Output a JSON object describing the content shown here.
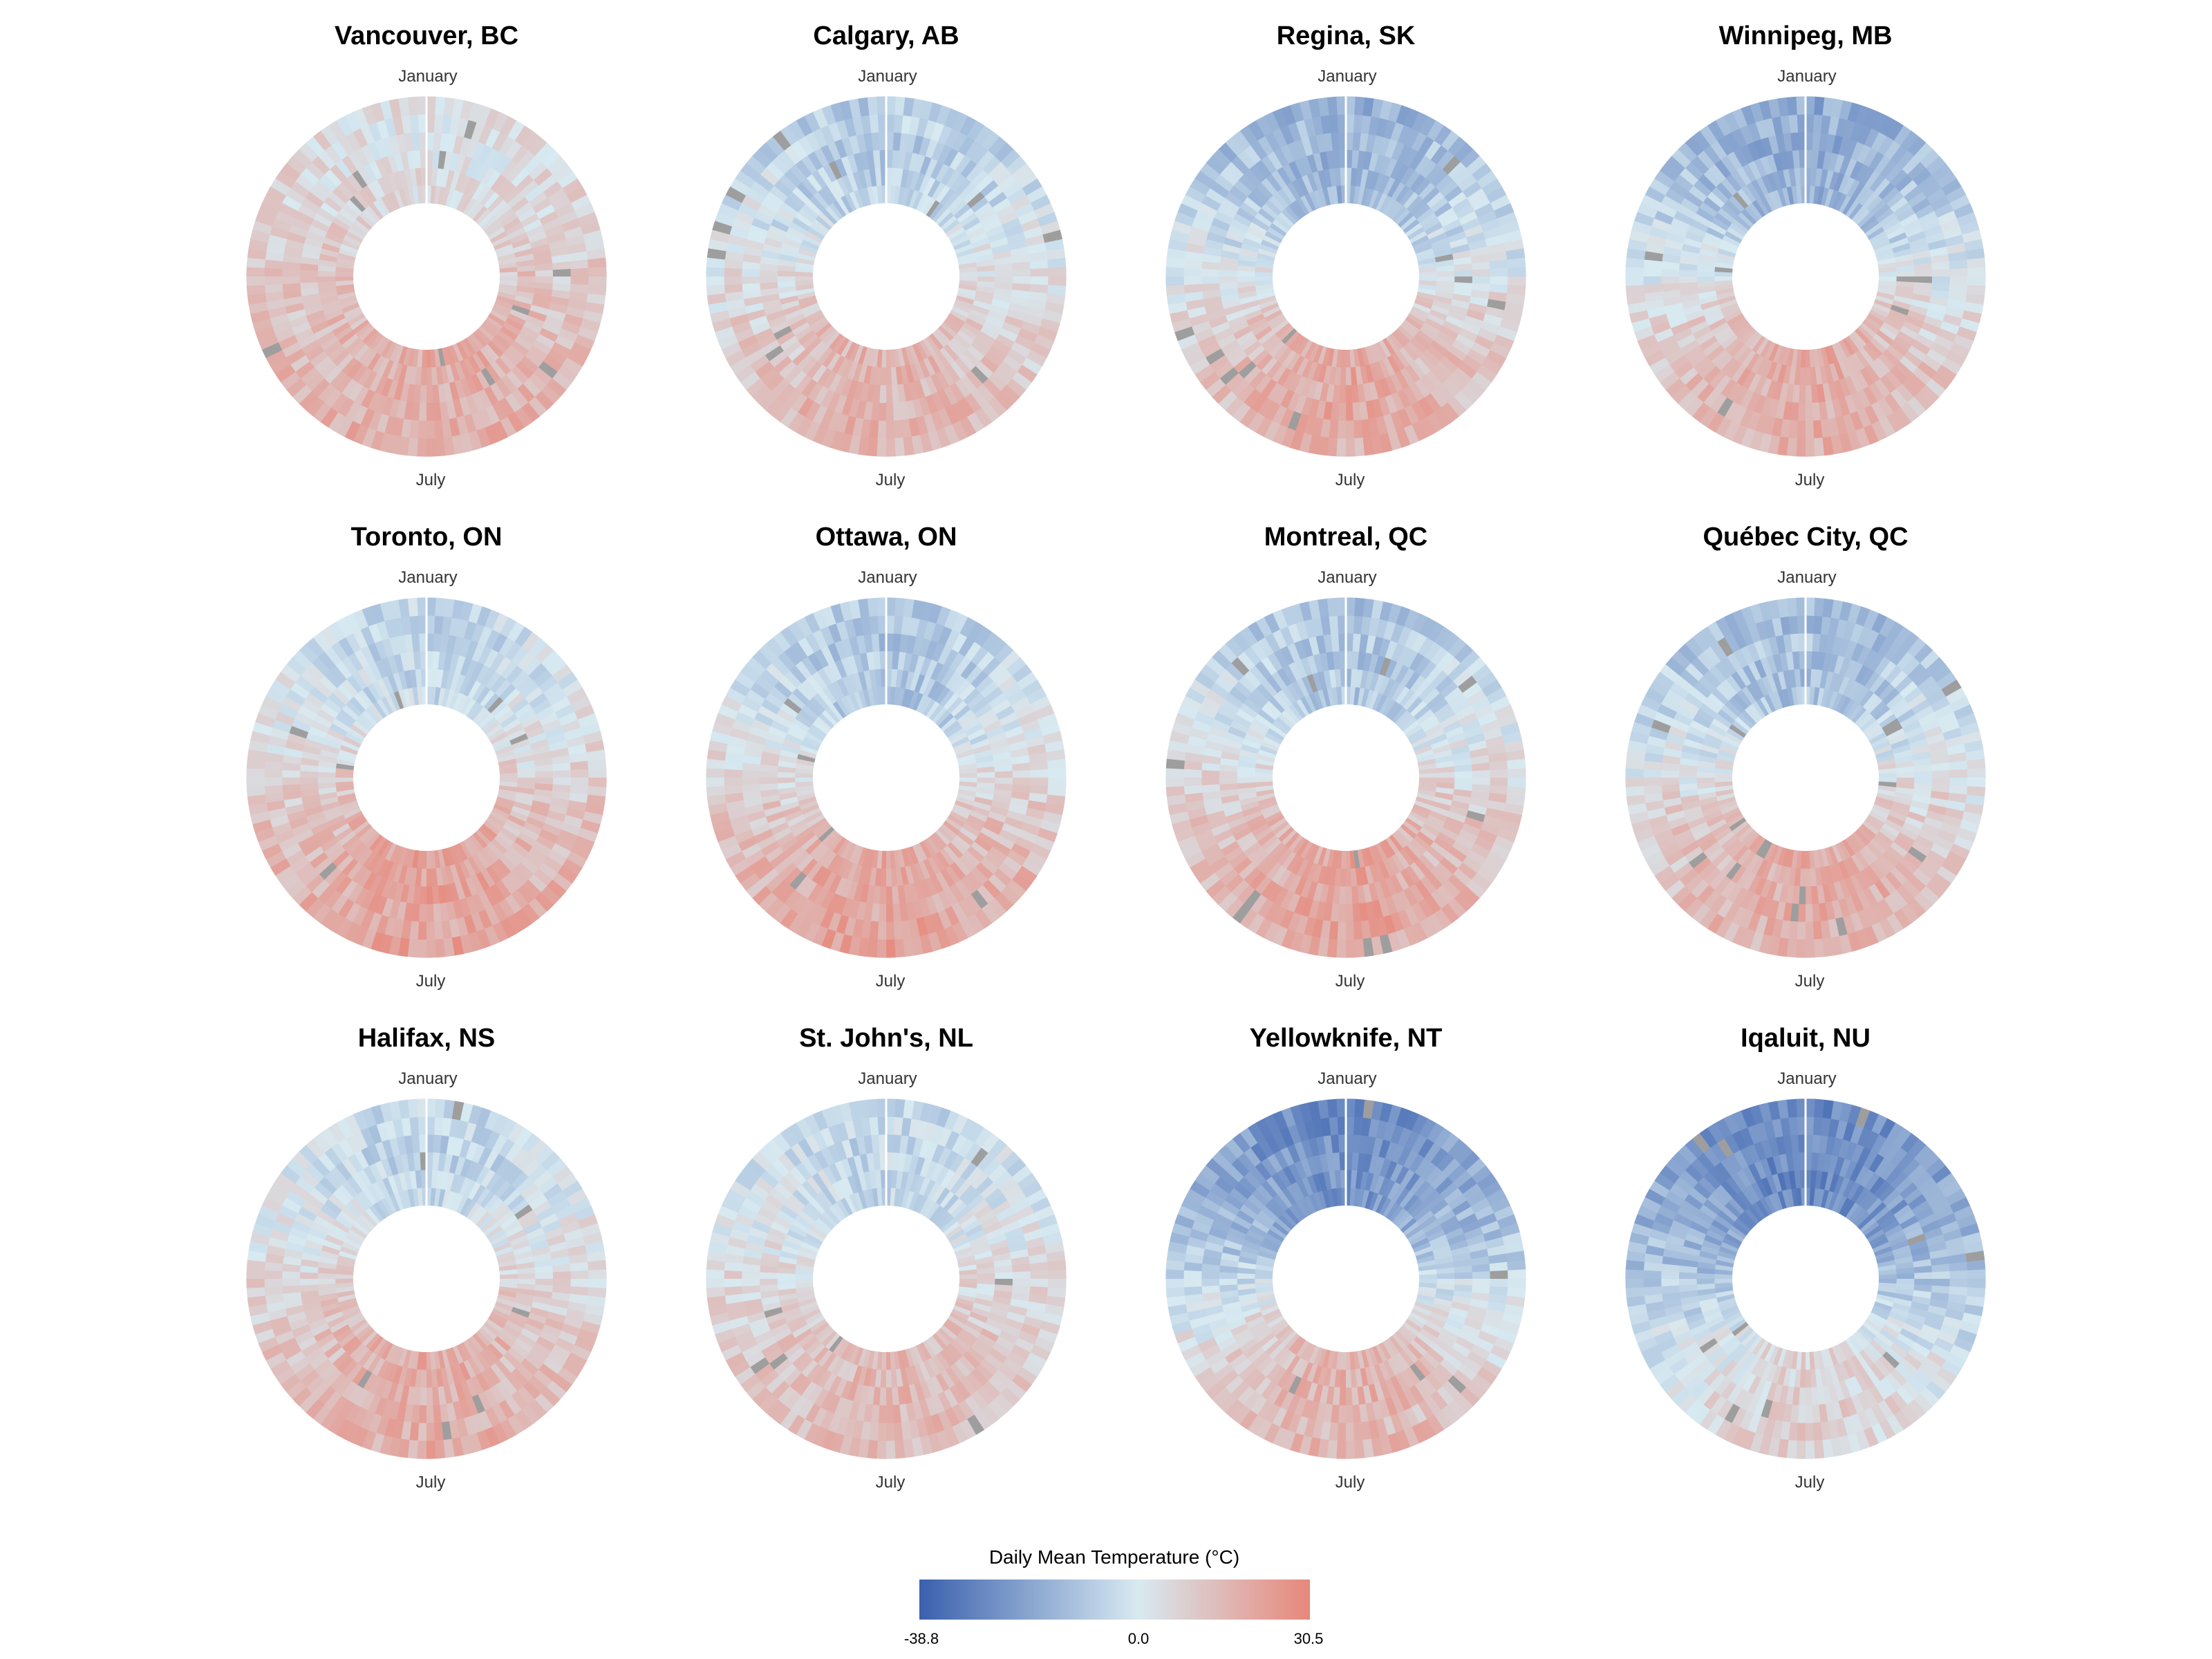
{
  "colors": {
    "cold": "#3a60ae",
    "mid": "#d8eaf1",
    "warm": "#e7877a",
    "missing": "#9e9e9e",
    "background": "#ffffff"
  },
  "chart_data": {
    "type": "heatmap",
    "subtype": "radial-daily-heatmap",
    "description_axes": {
      "angular": "day of year (January at top, July at bottom, clockwise)",
      "radial": "year rings"
    },
    "month_top_label": "January",
    "month_bottom_label": "July",
    "legend": {
      "title": "Daily Mean Temperature (°C)",
      "min": -38.8,
      "mid": 0.0,
      "max": 30.5,
      "min_label": "-38.8",
      "mid_label": "0.0",
      "max_label": "30.5",
      "placement": "bottom-center"
    },
    "rings": 6,
    "panels": [
      {
        "title": "Vancouver, BC",
        "jan_mean": 3.5,
        "jul_mean": 18.0
      },
      {
        "title": "Calgary, AB",
        "jan_mean": -8.0,
        "jul_mean": 16.5
      },
      {
        "title": "Regina, SK",
        "jan_mean": -15.0,
        "jul_mean": 19.0
      },
      {
        "title": "Winnipeg, MB",
        "jan_mean": -16.5,
        "jul_mean": 19.5
      },
      {
        "title": "Toronto, ON",
        "jan_mean": -5.0,
        "jul_mean": 22.0
      },
      {
        "title": "Ottawa, ON",
        "jan_mean": -10.0,
        "jul_mean": 21.0
      },
      {
        "title": "Montreal, QC",
        "jan_mean": -9.5,
        "jul_mean": 21.0
      },
      {
        "title": "Québec City, QC",
        "jan_mean": -12.0,
        "jul_mean": 19.0
      },
      {
        "title": "Halifax, NS",
        "jan_mean": -5.5,
        "jul_mean": 18.5
      },
      {
        "title": "St. John's, NL",
        "jan_mean": -4.5,
        "jul_mean": 15.5
      },
      {
        "title": "Yellowknife, NT",
        "jan_mean": -25.5,
        "jul_mean": 17.0
      },
      {
        "title": "Iqaluit, NU",
        "jan_mean": -27.0,
        "jul_mean": 8.0
      }
    ]
  }
}
